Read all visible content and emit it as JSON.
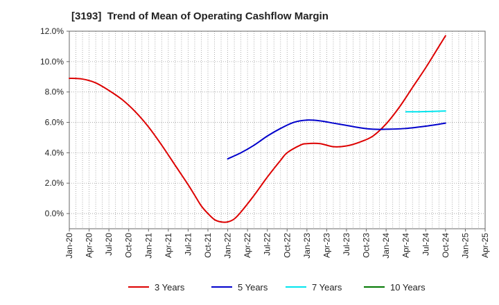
{
  "chart_data": {
    "type": "line",
    "title": "[3193]  Trend of Mean of Operating Cashflow Margin",
    "xlabel": "",
    "ylabel": "",
    "ylim": [
      -1.0,
      12.0
    ],
    "y_ticks": [
      0,
      2,
      4,
      6,
      8,
      10,
      12
    ],
    "y_tick_labels": [
      "0.0%",
      "2.0%",
      "4.0%",
      "6.0%",
      "8.0%",
      "10.0%",
      "12.0%"
    ],
    "x_tick_labels": [
      "Jan-20",
      "Apr-20",
      "Jul-20",
      "Oct-20",
      "Jan-21",
      "Apr-21",
      "Jul-21",
      "Oct-21",
      "Jan-22",
      "Apr-22",
      "Jul-22",
      "Oct-22",
      "Jan-23",
      "Apr-23",
      "Jul-23",
      "Oct-23",
      "Jan-24",
      "Apr-24",
      "Jul-24",
      "Oct-24",
      "Jan-25",
      "Apr-25"
    ],
    "grid": true,
    "legend_position": "bottom",
    "series": [
      {
        "name": "3 Years",
        "color": "#dd0000",
        "points": [
          [
            "Jan-20",
            8.9
          ],
          [
            "Mar-20",
            8.85
          ],
          [
            "May-20",
            8.6
          ],
          [
            "Jul-20",
            8.1
          ],
          [
            "Sep-20",
            7.5
          ],
          [
            "Nov-20",
            6.7
          ],
          [
            "Jan-21",
            5.7
          ],
          [
            "Mar-21",
            4.5
          ],
          [
            "May-21",
            3.2
          ],
          [
            "Jul-21",
            1.9
          ],
          [
            "Aug-21",
            1.2
          ],
          [
            "Sep-21",
            0.5
          ],
          [
            "Oct-21",
            0.0
          ],
          [
            "Nov-21",
            -0.4
          ],
          [
            "Dec-21",
            -0.55
          ],
          [
            "Jan-22",
            -0.55
          ],
          [
            "Feb-22",
            -0.35
          ],
          [
            "Mar-22",
            0.1
          ],
          [
            "May-22",
            1.2
          ],
          [
            "Jul-22",
            2.4
          ],
          [
            "Sep-22",
            3.5
          ],
          [
            "Oct-22",
            4.0
          ],
          [
            "Dec-22",
            4.5
          ],
          [
            "Jan-23",
            4.6
          ],
          [
            "Mar-23",
            4.6
          ],
          [
            "May-23",
            4.4
          ],
          [
            "Jul-23",
            4.45
          ],
          [
            "Sep-23",
            4.7
          ],
          [
            "Nov-23",
            5.1
          ],
          [
            "Jan-24",
            5.9
          ],
          [
            "Mar-24",
            7.0
          ],
          [
            "May-24",
            8.3
          ],
          [
            "Jul-24",
            9.6
          ],
          [
            "Sep-24",
            11.0
          ],
          [
            "Oct-24",
            11.7
          ]
        ]
      },
      {
        "name": "5 Years",
        "color": "#0000cc",
        "points": [
          [
            "Jan-22",
            3.6
          ],
          [
            "Mar-22",
            4.0
          ],
          [
            "May-22",
            4.5
          ],
          [
            "Jul-22",
            5.1
          ],
          [
            "Sep-22",
            5.6
          ],
          [
            "Nov-22",
            6.0
          ],
          [
            "Jan-23",
            6.15
          ],
          [
            "Mar-23",
            6.1
          ],
          [
            "May-23",
            5.95
          ],
          [
            "Jul-23",
            5.8
          ],
          [
            "Sep-23",
            5.65
          ],
          [
            "Nov-23",
            5.55
          ],
          [
            "Jan-24",
            5.55
          ],
          [
            "Apr-24",
            5.6
          ],
          [
            "Jul-24",
            5.75
          ],
          [
            "Oct-24",
            5.95
          ]
        ]
      },
      {
        "name": "7 Years",
        "color": "#00e5ee",
        "points": [
          [
            "Apr-24",
            6.7
          ],
          [
            "Jun-24",
            6.7
          ],
          [
            "Aug-24",
            6.72
          ],
          [
            "Oct-24",
            6.75
          ]
        ]
      },
      {
        "name": "10 Years",
        "color": "#007700",
        "points": []
      }
    ]
  }
}
